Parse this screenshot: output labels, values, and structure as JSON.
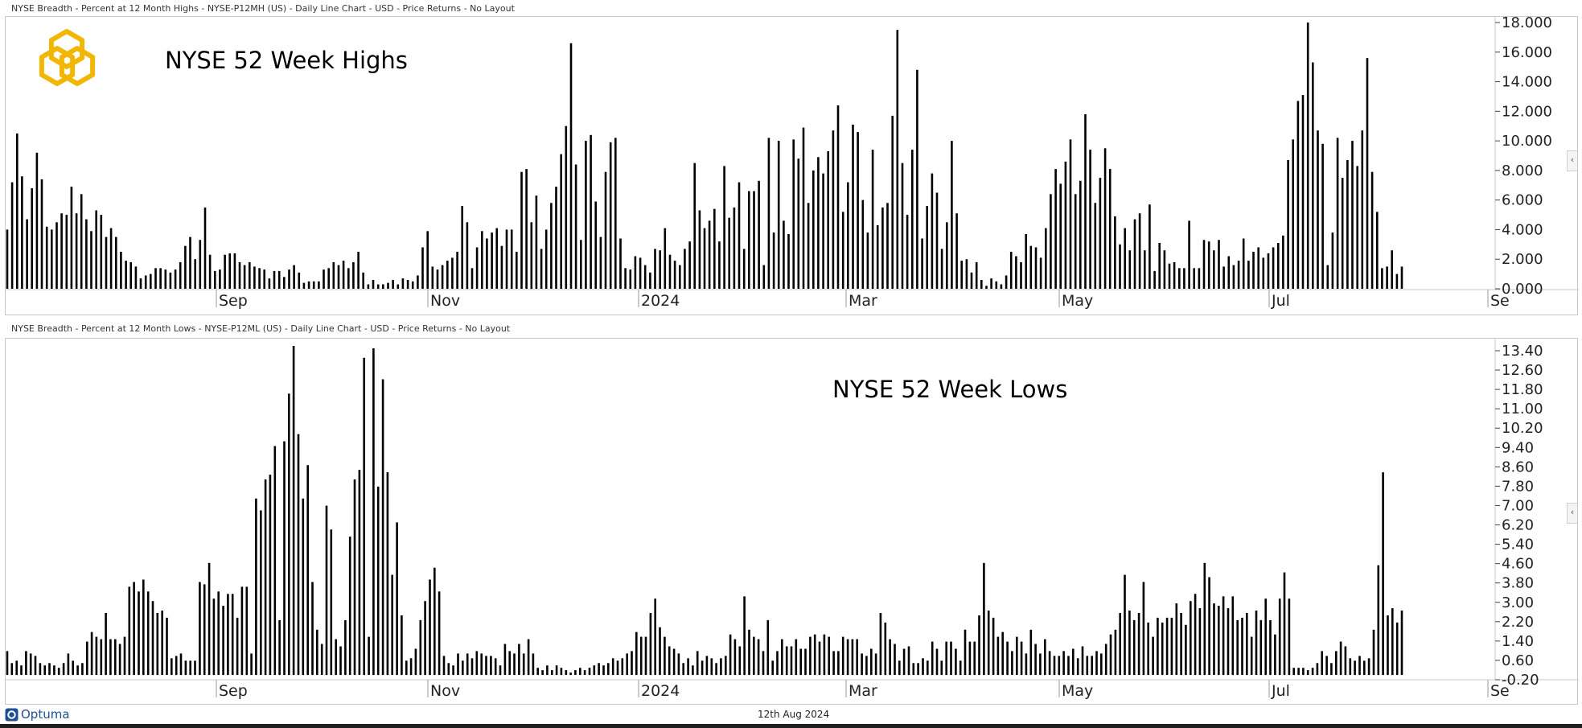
{
  "header_top": "NYSE Breadth - Percent at 12 Month Highs - NYSE-P12MH (US) - Daily Line Chart - USD - Price Returns - No Layout",
  "header_bottom": "NYSE Breadth - Percent at 12 Month Lows - NYSE-P12ML (US) - Daily Line Chart - USD - Price Returns - No Layout",
  "footer": {
    "brand": "Optuma",
    "date": "12th Aug 2024"
  },
  "icons": {
    "logo": "hexagon-logo-icon",
    "brand": "optuma-logo-icon",
    "collapse": "chevron-left-icon"
  },
  "colors": {
    "logo": "#f2b705",
    "bars": "#000000",
    "grid_border": "#c8c8c8",
    "brand": "#1d4f91"
  },
  "chart_data": [
    {
      "type": "bar",
      "title": "NYSE 52 Week Highs",
      "x_tick_labels": [
        "Sep",
        "Nov",
        "2024",
        "Mar",
        "May",
        "Jul",
        "Se"
      ],
      "y_tick_labels": [
        "18.000",
        "16.000",
        "14.000",
        "12.000",
        "10.000",
        "8.000",
        "6.000",
        "4.000",
        "2.000",
        "0.000"
      ],
      "ylim": [
        0,
        18
      ],
      "values": [
        4.0,
        7.2,
        10.5,
        7.6,
        4.7,
        6.8,
        9.2,
        7.4,
        4.2,
        4.0,
        4.5,
        5.1,
        5.0,
        6.9,
        5.1,
        6.4,
        4.7,
        3.9,
        5.3,
        5.0,
        3.5,
        4.1,
        3.5,
        2.5,
        1.9,
        1.8,
        1.5,
        0.7,
        0.9,
        1.0,
        1.4,
        1.4,
        1.3,
        1.1,
        1.3,
        1.8,
        2.9,
        3.5,
        2.0,
        3.3,
        5.5,
        2.3,
        1.2,
        1.3,
        2.3,
        2.4,
        2.4,
        1.8,
        1.6,
        1.8,
        1.5,
        1.4,
        1.3,
        0.7,
        1.2,
        1.2,
        0.8,
        1.3,
        1.6,
        1.1,
        0.4,
        0.5,
        0.5,
        0.5,
        1.3,
        1.4,
        1.8,
        1.6,
        1.9,
        1.4,
        1.8,
        2.5,
        1.1,
        0.3,
        0.6,
        0.3,
        0.3,
        0.4,
        0.6,
        0.3,
        0.7,
        0.6,
        0.5,
        0.9,
        2.8,
        3.9,
        1.5,
        1.3,
        1.6,
        1.9,
        2.1,
        2.5,
        5.6,
        4.5,
        1.4,
        2.8,
        3.9,
        3.4,
        3.8,
        4.1,
        2.9,
        4.0,
        4.0,
        2.5,
        7.9,
        8.1,
        4.5,
        6.3,
        2.7,
        4.0,
        5.8,
        6.9,
        9.1,
        11.0,
        16.6,
        8.4,
        3.3,
        10.0,
        10.4,
        5.9,
        3.5,
        7.9,
        9.9,
        10.2,
        3.4,
        1.4,
        1.3,
        2.2,
        2.1,
        1.6,
        1.1,
        2.7,
        2.6,
        4.1,
        2.3,
        1.9,
        1.6,
        2.7,
        3.2,
        8.5,
        5.3,
        4.1,
        4.6,
        5.4,
        3.2,
        8.3,
        4.8,
        5.5,
        7.2,
        2.7,
        6.6,
        6.6,
        7.3,
        1.6,
        10.2,
        3.8,
        10.0,
        4.6,
        3.7,
        10.1,
        8.8,
        10.9,
        5.8,
        8.0,
        8.9,
        7.8,
        9.3,
        10.7,
        12.4,
        5.2,
        7.2,
        11.1,
        10.6,
        6.0,
        3.8,
        9.4,
        4.3,
        5.5,
        5.8,
        11.7,
        17.5,
        8.5,
        5.0,
        9.4,
        14.8,
        3.4,
        5.6,
        7.8,
        6.5,
        2.7,
        4.5,
        10.0,
        5.1,
        1.9,
        2.0,
        1.1,
        1.8,
        0.6,
        0.2,
        0.7,
        0.5,
        0.3,
        0.9,
        2.5,
        2.2,
        1.8,
        3.7,
        2.9,
        2.8,
        2.1,
        4.1,
        6.4,
        8.1,
        7.1,
        8.6,
        10.1,
        6.4,
        7.3,
        11.8,
        9.4,
        5.8,
        7.5,
        9.5,
        8.1,
        4.9,
        3.0,
        4.1,
        2.6,
        4.7,
        5.1,
        2.6,
        5.7,
        1.2,
        3.1,
        2.6,
        1.7,
        1.8,
        1.4,
        1.4,
        4.6,
        1.4,
        1.4,
        3.3,
        3.2,
        2.6,
        3.3,
        1.5,
        2.2,
        1.6,
        1.9,
        3.4,
        1.9,
        2.5,
        2.8,
        2.1,
        2.4,
        2.8,
        3.1,
        3.6,
        8.7,
        10.1,
        12.7,
        13.1,
        18.0,
        15.3,
        10.7,
        9.8,
        1.6,
        3.8,
        10.2,
        7.5,
        8.7,
        10.0,
        8.3,
        10.7,
        15.6,
        7.9,
        5.2,
        1.4,
        1.5,
        2.6,
        1.0,
        1.5
      ]
    },
    {
      "type": "bar",
      "title": "NYSE 52 Week Lows",
      "x_tick_labels": [
        "Sep",
        "Nov",
        "2024",
        "Mar",
        "May",
        "Jul",
        "Se"
      ],
      "y_tick_labels": [
        "13.40",
        "12.60",
        "11.80",
        "11.00",
        "10.20",
        "9.40",
        "8.60",
        "7.80",
        "7.00",
        "6.20",
        "5.40",
        "4.60",
        "3.80",
        "3.00",
        "2.20",
        "1.40",
        "0.60",
        "-0.20"
      ],
      "ylim": [
        -0.2,
        13.8
      ],
      "values": [
        1.0,
        0.5,
        0.6,
        0.4,
        1.0,
        0.9,
        0.8,
        0.5,
        0.4,
        0.5,
        0.4,
        0.3,
        0.5,
        0.9,
        0.6,
        0.4,
        0.5,
        1.4,
        1.8,
        1.6,
        1.5,
        2.6,
        1.5,
        1.5,
        1.3,
        1.6,
        3.7,
        3.9,
        3.5,
        4.0,
        3.5,
        3.1,
        2.6,
        2.7,
        2.4,
        0.7,
        0.8,
        0.9,
        0.6,
        0.6,
        0.6,
        3.9,
        3.8,
        4.7,
        3.2,
        3.5,
        2.9,
        3.4,
        3.4,
        2.4,
        3.7,
        3.7,
        0.9,
        7.4,
        6.9,
        8.2,
        8.4,
        9.6,
        2.3,
        9.8,
        11.8,
        13.8,
        10.1,
        7.4,
        8.8,
        3.9,
        1.9,
        1.3,
        7.1,
        6.1,
        1.5,
        1.2,
        2.3,
        5.8,
        8.2,
        8.6,
        13.3,
        1.6,
        13.7,
        7.9,
        12.4,
        8.5,
        4.2,
        6.4,
        2.5,
        0.6,
        0.7,
        1.1,
        2.3,
        3.1,
        4.0,
        4.5,
        3.5,
        0.8,
        0.5,
        0.4,
        0.9,
        0.6,
        0.9,
        0.7,
        1.0,
        0.9,
        0.8,
        0.8,
        0.7,
        0.4,
        1.3,
        1.0,
        0.9,
        1.3,
        0.9,
        1.5,
        0.9,
        0.3,
        0.2,
        0.4,
        0.2,
        0.4,
        0.3,
        0.2,
        0.1,
        0.2,
        0.3,
        0.2,
        0.3,
        0.4,
        0.5,
        0.4,
        0.5,
        0.7,
        0.6,
        0.7,
        0.9,
        1.0,
        1.8,
        1.6,
        1.6,
        2.6,
        3.2,
        2.0,
        1.6,
        1.2,
        1.1,
        0.9,
        0.5,
        0.7,
        0.4,
        1.0,
        0.6,
        0.8,
        0.7,
        0.5,
        0.7,
        0.8,
        1.7,
        1.5,
        1.2,
        3.3,
        1.9,
        1.6,
        1.5,
        1.0,
        2.3,
        0.6,
        1.0,
        1.5,
        1.2,
        1.2,
        1.5,
        1.1,
        1.1,
        1.6,
        1.7,
        1.4,
        1.7,
        1.6,
        1.0,
        1.0,
        1.6,
        1.5,
        1.5,
        1.5,
        0.9,
        0.8,
        1.1,
        0.9,
        2.6,
        2.2,
        1.5,
        1.3,
        0.6,
        1.1,
        1.2,
        0.5,
        0.5,
        0.7,
        0.6,
        1.4,
        1.1,
        0.6,
        1.4,
        1.4,
        1.1,
        0.6,
        1.9,
        1.4,
        1.4,
        2.5,
        4.7,
        2.7,
        2.4,
        1.6,
        1.8,
        1.4,
        1.0,
        1.6,
        1.4,
        0.9,
        1.9,
        1.3,
        0.9,
        1.5,
        1.0,
        0.8,
        0.8,
        1.0,
        0.8,
        1.1,
        0.7,
        1.2,
        0.8,
        0.8,
        1.0,
        0.9,
        1.3,
        1.7,
        1.9,
        2.6,
        4.2,
        2.7,
        2.3,
        2.6,
        3.9,
        2.2,
        1.6,
        2.4,
        2.2,
        2.4,
        2.4,
        3.0,
        2.6,
        2.1,
        3.1,
        3.4,
        2.8,
        4.7,
        4.1,
        3.0,
        2.9,
        3.3,
        2.8,
        3.3,
        2.3,
        2.4,
        2.6,
        1.6,
        2.7,
        2.3,
        3.2,
        2.3,
        1.7,
        3.2,
        4.3,
        3.2,
        0.3,
        0.3,
        0.3,
        0.2,
        0.3,
        0.5,
        1.0,
        0.8,
        0.5,
        1.0,
        1.4,
        1.2,
        0.7,
        0.6,
        0.8,
        0.6,
        0.7,
        1.9,
        4.6,
        8.5,
        2.5,
        2.8,
        2.2,
        2.7
      ]
    }
  ]
}
